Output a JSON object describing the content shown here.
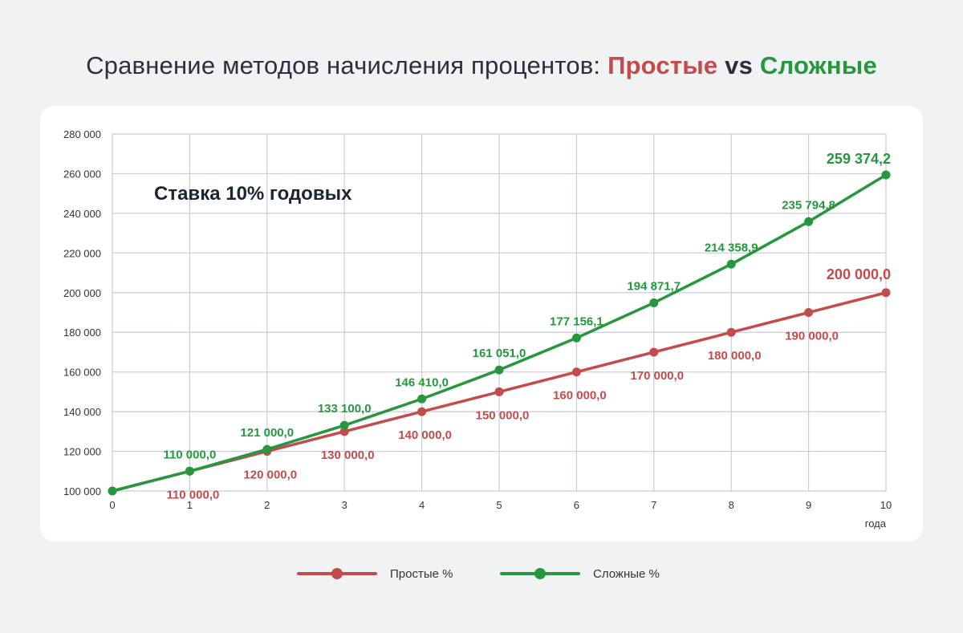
{
  "title": {
    "prefix": "Сравнение методов начисления процентов: ",
    "simple": "Простые",
    "vs": " vs ",
    "compound": "Сложные"
  },
  "colors": {
    "simple": "#c44b4b",
    "compound": "#27973f",
    "grid": "#c9cbd9",
    "axis_text": "#333333"
  },
  "chart_data": {
    "type": "line",
    "annotation": "Ставка 10% годовых",
    "xlabel": "года",
    "ylabel": "",
    "x": [
      0,
      1,
      2,
      3,
      4,
      5,
      6,
      7,
      8,
      9,
      10
    ],
    "xlim": [
      0,
      10
    ],
    "ylim": [
      100000,
      280000
    ],
    "yticks": [
      100000,
      120000,
      140000,
      160000,
      180000,
      200000,
      220000,
      240000,
      260000,
      280000
    ],
    "ytick_labels": [
      "100 000",
      "120 000",
      "140 000",
      "160 000",
      "180 000",
      "200 000",
      "220 000",
      "240 000",
      "260 000",
      "280 000"
    ],
    "xtick_labels": [
      "0",
      "1",
      "2",
      "3",
      "4",
      "5",
      "6",
      "7",
      "8",
      "9",
      "10"
    ],
    "series": [
      {
        "name": "Простые %",
        "key": "simple",
        "values": [
          100000,
          110000,
          120000,
          130000,
          140000,
          150000,
          160000,
          170000,
          180000,
          190000,
          200000
        ],
        "point_labels": [
          "",
          "110 000,0",
          "120 000,0",
          "130 000,0",
          "140 000,0",
          "150 000,0",
          "160 000,0",
          "170 000,0",
          "180 000,0",
          "190 000,0",
          "200 000,0"
        ]
      },
      {
        "name": "Сложные %",
        "key": "compound",
        "values": [
          100000,
          110000,
          121000,
          133100,
          146410,
          161051,
          177156.1,
          194871.7,
          214358.9,
          235794.8,
          259374.2
        ],
        "point_labels": [
          "",
          "110 000,0",
          "121 000,0",
          "133 100,0",
          "146 410,0",
          "161 051,0",
          "177 156,1",
          "194 871,7",
          "214 358,9",
          "235 794,8",
          "259 374,2"
        ]
      }
    ],
    "legend": {
      "position": "bottom-center"
    }
  },
  "legend": {
    "simple_label": "Простые %",
    "compound_label": "Сложные %"
  }
}
